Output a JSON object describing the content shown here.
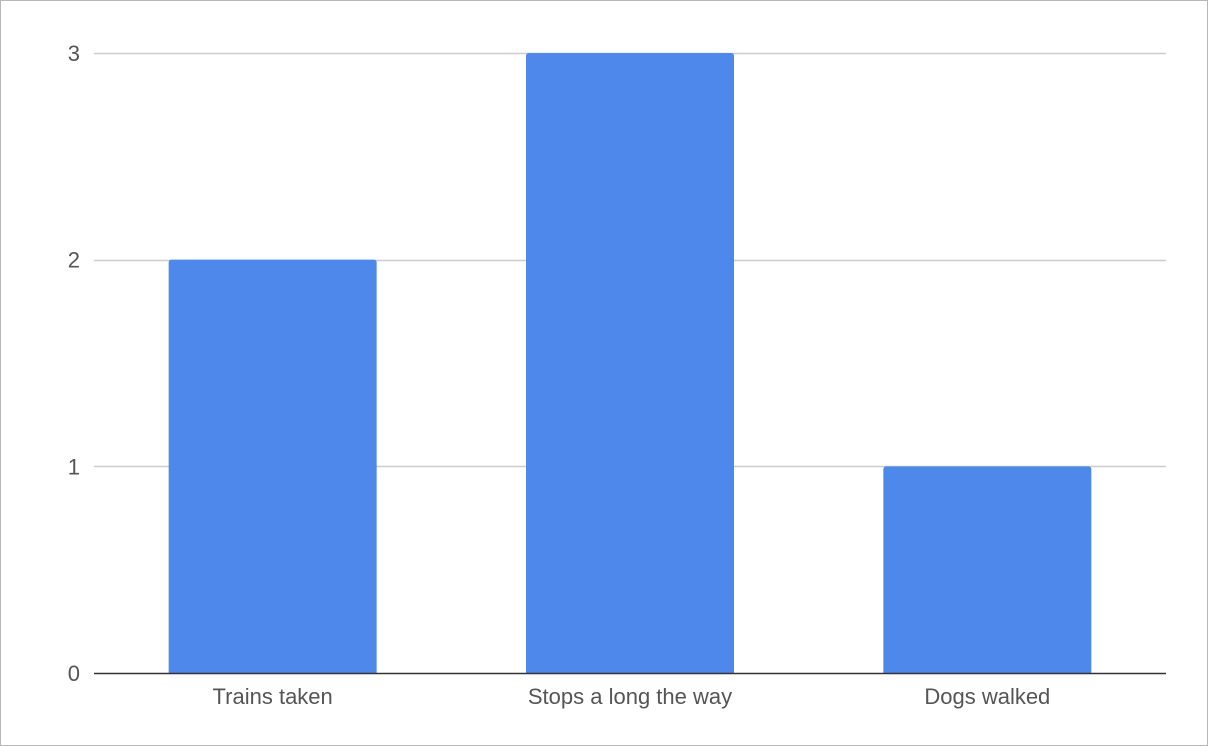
{
  "chart_data": {
    "type": "bar",
    "categories": [
      "Trains taken",
      "Stops a long the way",
      "Dogs walked"
    ],
    "values": [
      2,
      3,
      1
    ],
    "ylim": [
      0,
      3
    ],
    "yticks": [
      0,
      1,
      2,
      3
    ],
    "grid": true,
    "legend": "none",
    "bar_color": "#4f88eb",
    "grid_color": "#cccccc",
    "axis_color": "#333333"
  }
}
